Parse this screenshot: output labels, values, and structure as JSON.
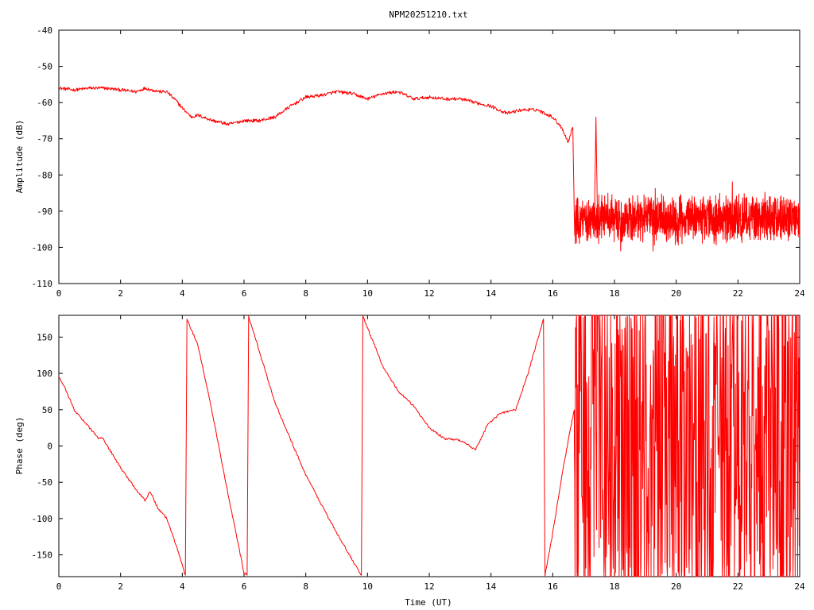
{
  "chart_data": [
    {
      "type": "line",
      "title": "NPM20251210.txt",
      "xlabel": "",
      "ylabel": "Amplitude (dB)",
      "xlim": [
        0,
        24
      ],
      "ylim": [
        -110,
        -40
      ],
      "x_ticks": [
        "0",
        "2",
        "4",
        "6",
        "8",
        "10",
        "12",
        "14",
        "16",
        "18",
        "20",
        "22",
        "24"
      ],
      "y_ticks": [
        "-40",
        "-50",
        "-60",
        "-70",
        "-80",
        "-90",
        "-100",
        "-110"
      ],
      "grid": false,
      "line_color": "#ff0000",
      "series": [
        {
          "x": [
            0,
            0.5,
            1.0,
            1.5,
            2.0,
            2.5,
            2.8,
            3.0,
            3.3,
            3.5,
            3.8,
            4.0,
            4.3,
            4.5,
            5.0,
            5.5,
            6.0,
            6.5,
            7.0,
            7.5,
            8.0,
            8.5,
            9.0,
            9.5,
            10.0,
            10.5,
            11.0,
            11.5,
            12.0,
            12.5,
            13.0,
            13.5,
            14.0,
            14.5,
            15.0,
            15.5,
            16.0,
            16.3,
            16.5,
            16.6,
            16.65,
            16.7,
            17.0,
            17.35,
            17.4,
            17.45,
            18,
            19,
            20,
            21,
            22,
            23,
            24
          ],
          "y": [
            -56,
            -56.5,
            -56,
            -56,
            -56.5,
            -57,
            -56,
            -56.5,
            -57,
            -57,
            -59.5,
            -61.5,
            -64,
            -63.5,
            -65,
            -66,
            -65,
            -65,
            -64,
            -61,
            -58.5,
            -58,
            -57,
            -57.5,
            -59,
            -57.5,
            -57,
            -59,
            -58.5,
            -59,
            -59,
            -60,
            -61,
            -63,
            -62,
            -62,
            -64,
            -67,
            -71,
            -68,
            -66.5,
            -92,
            -92.5,
            -92,
            -64,
            -92,
            -92,
            -92.5,
            -92,
            -92,
            -92.5,
            -92,
            -92
          ]
        }
      ],
      "annotations": [
        "noisy band approx -86 to -98 dB from 16.7 to 24 UT"
      ]
    },
    {
      "type": "line",
      "title": "",
      "xlabel": "Time (UT)",
      "ylabel": "Phase (deg)",
      "xlim": [
        0,
        24
      ],
      "ylim": [
        -180,
        180
      ],
      "x_ticks": [
        "0",
        "2",
        "4",
        "6",
        "8",
        "10",
        "12",
        "14",
        "16",
        "18",
        "20",
        "22",
        "24"
      ],
      "y_ticks": [
        "150",
        "100",
        "50",
        "0",
        "-50",
        "-100",
        "-150"
      ],
      "grid": false,
      "line_color": "#ff0000",
      "series": [
        {
          "x": [
            0,
            0.2,
            0.5,
            0.7,
            1.0,
            1.3,
            1.4,
            1.5,
            2.0,
            2.5,
            2.8,
            2.95,
            3.2,
            3.5,
            3.9,
            4.1,
            4.15,
            4.5,
            5.0,
            5.5,
            6.0,
            6.1,
            6.15,
            6.5,
            7.0,
            8.0,
            9.0,
            9.8,
            9.85,
            10.5,
            11.0,
            11.5,
            12.0,
            12.5,
            13.0,
            13.5,
            13.9,
            14.3,
            14.8,
            15.2,
            15.7,
            15.75,
            16.0,
            16.3,
            16.6,
            16.7
          ],
          "y": [
            95,
            80,
            50,
            40,
            25,
            10,
            12,
            5,
            -30,
            -60,
            -75,
            -62,
            -85,
            -100,
            -150,
            -178,
            175,
            140,
            40,
            -70,
            -175,
            -178,
            178,
            130,
            60,
            -40,
            -120,
            -178,
            178,
            110,
            75,
            55,
            25,
            10,
            8,
            -5,
            30,
            45,
            50,
            100,
            175,
            -178,
            -120,
            -40,
            30,
            50
          ]
        }
      ],
      "annotations": [
        "phase wraps rapidly between -180 and 180 from 16.7 to 24 UT"
      ]
    }
  ]
}
